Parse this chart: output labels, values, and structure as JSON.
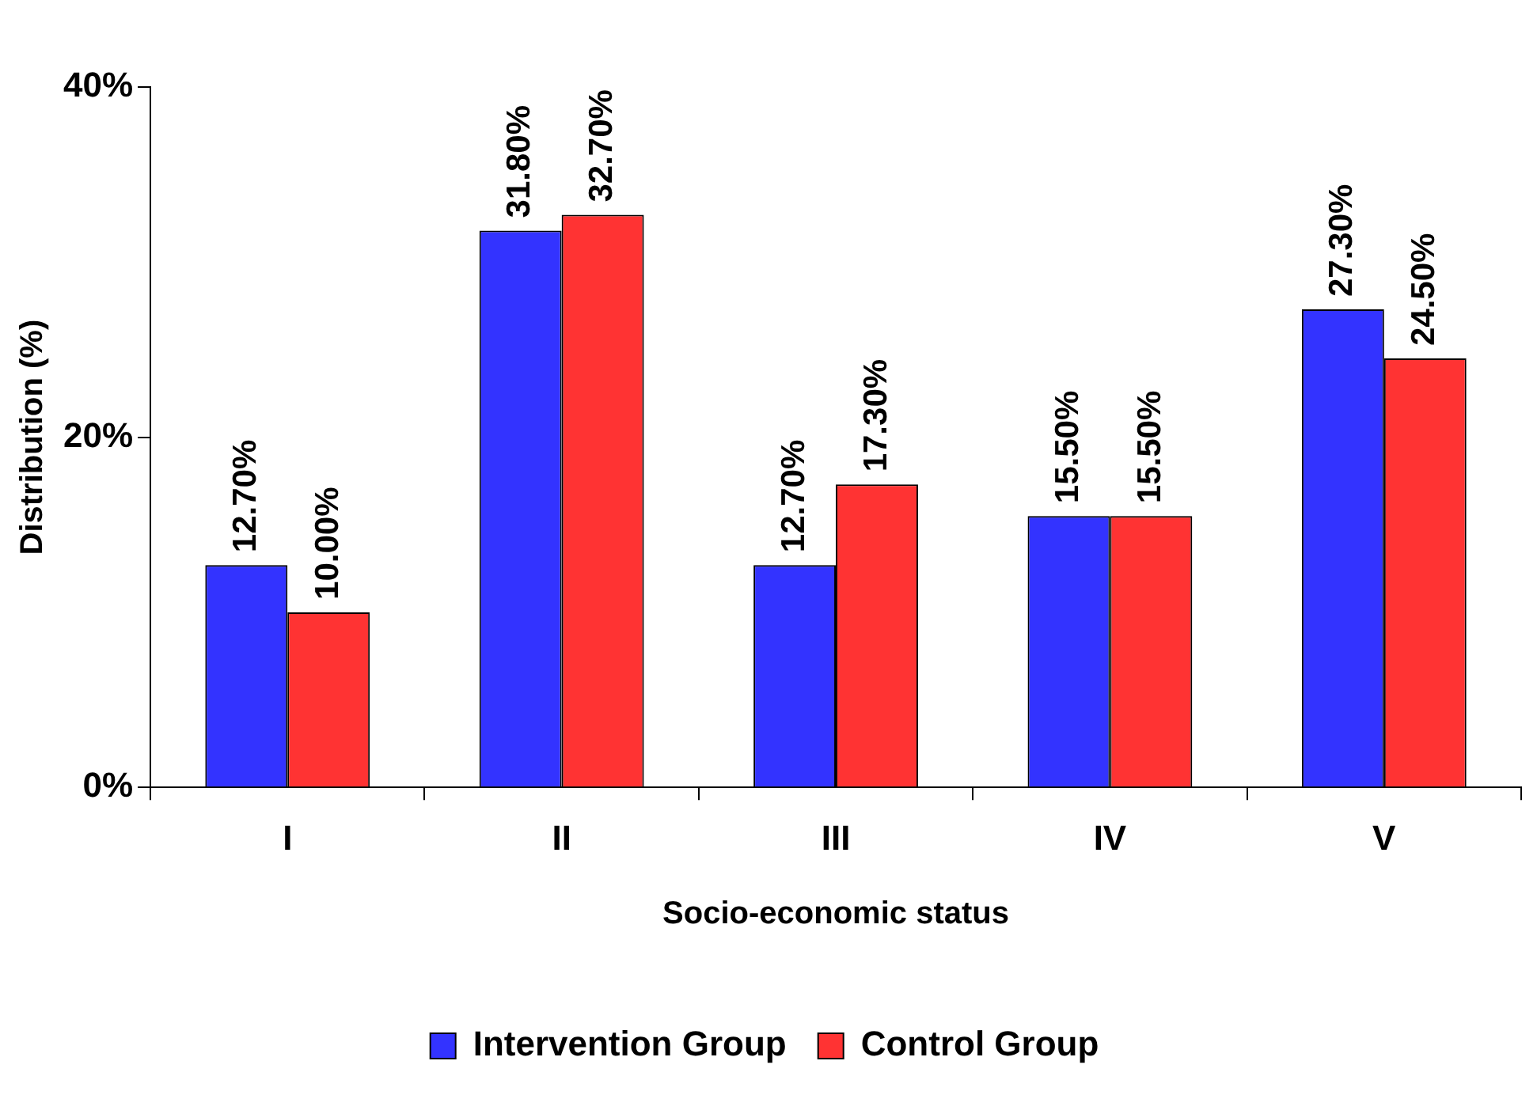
{
  "chart_data": {
    "type": "bar",
    "xlabel": "Socio-economic status",
    "ylabel": "Distribution (%)",
    "categories": [
      "I",
      "II",
      "III",
      "IV",
      "V"
    ],
    "series": [
      {
        "name": "Intervention Group",
        "color": "#3333ff",
        "values": [
          12.7,
          31.8,
          12.7,
          15.5,
          27.3
        ],
        "value_labels": [
          "12.70%",
          "31.80%",
          "12.70%",
          "15.50%",
          "27.30%"
        ]
      },
      {
        "name": "Control Group",
        "color": "#ff3333",
        "values": [
          10.0,
          32.7,
          17.3,
          15.5,
          24.5
        ],
        "value_labels": [
          "10.00%",
          "32.70%",
          "17.30%",
          "15.50%",
          "24.50%"
        ]
      }
    ],
    "ylim": [
      0,
      40
    ],
    "yticks": [
      {
        "value": 0,
        "label": "0%"
      },
      {
        "value": 20,
        "label": "20%"
      },
      {
        "value": 40,
        "label": "40%"
      }
    ],
    "grid": false,
    "legend": "bottom"
  }
}
